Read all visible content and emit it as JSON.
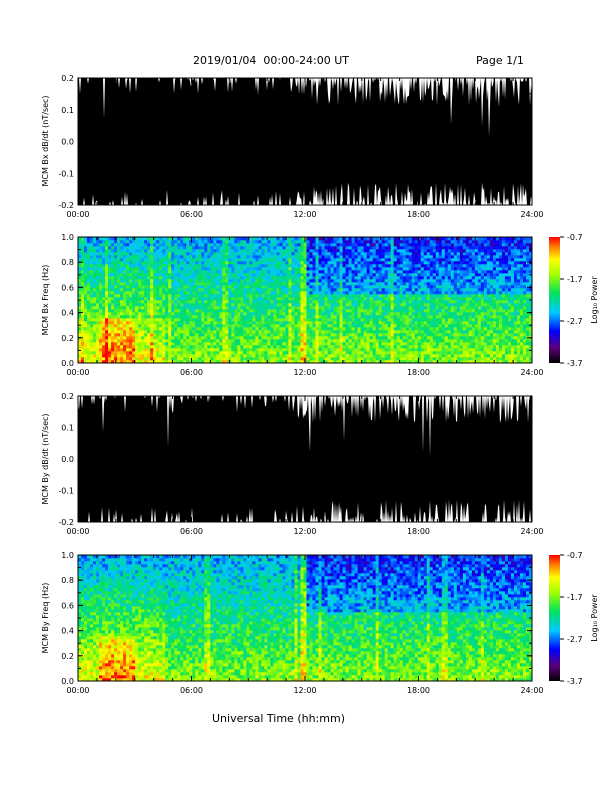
{
  "header": {
    "title": "2019/01/04  00:00-24:00 UT",
    "page": "Page 1/1"
  },
  "xaxis_title": "Universal Time (hh:mm)",
  "colorbar": {
    "ticks": [
      "-0.7",
      "-1.7",
      "-2.7",
      "-3.7"
    ],
    "label": "Log₁₀ Power"
  },
  "colors": {
    "waveform_fill": "#000000",
    "background": "#ffffff"
  },
  "chart_data": [
    {
      "type": "area",
      "name": "bx-waveform",
      "ylabel": "MCM Bx dB/dt (nT/sec)",
      "xlim": [
        "00:00",
        "24:00"
      ],
      "ylim": [
        -0.2,
        0.2
      ],
      "xticks": [
        "00:00",
        "06:00",
        "12:00",
        "18:00",
        "24:00"
      ],
      "yticks": [
        "-0.2",
        "-0.1",
        "0.0",
        "0.1",
        "0.2"
      ],
      "note_values": "signal saturates the plotted range most of the day; brief white gaps mark lower-amplitude intervals"
    },
    {
      "type": "heatmap",
      "name": "bx-spectrogram",
      "ylabel": "MCM Bx Freq (Hz)",
      "xlim": [
        "00:00",
        "24:00"
      ],
      "ylim": [
        0.0,
        1.0
      ],
      "xticks": [
        "00:00",
        "06:00",
        "12:00",
        "18:00",
        "24:00"
      ],
      "yticks": [
        "0.0",
        "0.2",
        "0.4",
        "0.6",
        "0.8",
        "1.0"
      ],
      "zlim": [
        -3.7,
        -0.7
      ],
      "zlabel": "Log10 Power"
    },
    {
      "type": "area",
      "name": "by-waveform",
      "ylabel": "MCM By dB/dt (nT/sec)",
      "xlim": [
        "00:00",
        "24:00"
      ],
      "ylim": [
        -0.2,
        0.2
      ],
      "xticks": [
        "00:00",
        "06:00",
        "12:00",
        "18:00",
        "24:00"
      ],
      "yticks": [
        "-0.2",
        "-0.1",
        "0.0",
        "0.1",
        "0.2"
      ]
    },
    {
      "type": "heatmap",
      "name": "by-spectrogram",
      "ylabel": "MCM By Freq (Hz)",
      "xlim": [
        "00:00",
        "24:00"
      ],
      "ylim": [
        0.0,
        1.0
      ],
      "xticks": [
        "00:00",
        "06:00",
        "12:00",
        "18:00",
        "24:00"
      ],
      "yticks": [
        "0.0",
        "0.2",
        "0.4",
        "0.6",
        "0.8",
        "1.0"
      ],
      "zlim": [
        -3.7,
        -0.7
      ],
      "zlabel": "Log10 Power"
    }
  ]
}
